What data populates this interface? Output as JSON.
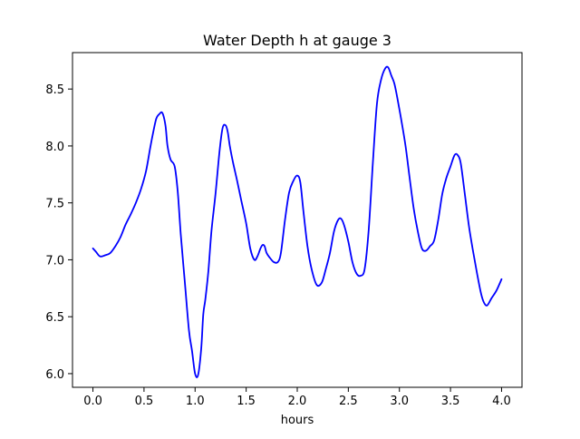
{
  "chart_data": {
    "type": "line",
    "title": "Water Depth h at gauge 3",
    "xlabel": "hours",
    "ylabel": "",
    "xlim": [
      -0.2,
      4.2
    ],
    "ylim": [
      5.88,
      8.82
    ],
    "xticks": [
      0.0,
      0.5,
      1.0,
      1.5,
      2.0,
      2.5,
      3.0,
      3.5,
      4.0
    ],
    "xtick_labels": [
      "0.0",
      "0.5",
      "1.0",
      "1.5",
      "2.0",
      "2.5",
      "3.0",
      "3.5",
      "4.0"
    ],
    "yticks": [
      6.0,
      6.5,
      7.0,
      7.5,
      8.0,
      8.5
    ],
    "ytick_labels": [
      "6.0",
      "6.5",
      "7.0",
      "7.5",
      "8.0",
      "8.5"
    ],
    "grid": false,
    "series": [
      {
        "color": "#0000ff",
        "x": [
          0.0,
          0.03,
          0.07,
          0.12,
          0.17,
          0.22,
          0.27,
          0.32,
          0.37,
          0.42,
          0.47,
          0.52,
          0.56,
          0.59,
          0.62,
          0.65,
          0.68,
          0.71,
          0.73,
          0.76,
          0.8,
          0.83,
          0.86,
          0.9,
          0.94,
          0.97,
          1.0,
          1.03,
          1.06,
          1.08,
          1.1,
          1.13,
          1.16,
          1.2,
          1.24,
          1.27,
          1.3,
          1.32,
          1.34,
          1.37,
          1.41,
          1.45,
          1.5,
          1.54,
          1.58,
          1.61,
          1.64,
          1.66,
          1.68,
          1.7,
          1.73,
          1.77,
          1.81,
          1.84,
          1.88,
          1.92,
          1.96,
          2.0,
          2.03,
          2.06,
          2.1,
          2.14,
          2.19,
          2.24,
          2.28,
          2.32,
          2.36,
          2.4,
          2.43,
          2.46,
          2.5,
          2.54,
          2.58,
          2.62,
          2.66,
          2.7,
          2.74,
          2.78,
          2.82,
          2.86,
          2.89,
          2.92,
          2.95,
          2.98,
          3.02,
          3.06,
          3.1,
          3.14,
          3.18,
          3.22,
          3.26,
          3.3,
          3.34,
          3.38,
          3.42,
          3.46,
          3.5,
          3.54,
          3.57,
          3.6,
          3.64,
          3.68,
          3.72,
          3.76,
          3.8,
          3.83,
          3.86,
          3.9,
          3.95,
          4.0
        ],
        "y": [
          7.1,
          7.07,
          7.03,
          7.04,
          7.06,
          7.12,
          7.2,
          7.31,
          7.4,
          7.5,
          7.62,
          7.78,
          7.98,
          8.12,
          8.24,
          8.28,
          8.29,
          8.18,
          8.0,
          7.88,
          7.82,
          7.6,
          7.22,
          6.8,
          6.38,
          6.2,
          6.0,
          5.99,
          6.22,
          6.52,
          6.65,
          6.9,
          7.25,
          7.58,
          7.96,
          8.16,
          8.18,
          8.12,
          8.0,
          7.86,
          7.7,
          7.53,
          7.32,
          7.1,
          7.0,
          7.03,
          7.1,
          7.13,
          7.12,
          7.06,
          7.02,
          6.98,
          6.98,
          7.06,
          7.35,
          7.59,
          7.69,
          7.74,
          7.68,
          7.43,
          7.12,
          6.92,
          6.78,
          6.8,
          6.92,
          7.06,
          7.25,
          7.35,
          7.36,
          7.3,
          7.16,
          6.98,
          6.88,
          6.86,
          6.92,
          7.27,
          7.85,
          8.37,
          8.58,
          8.68,
          8.69,
          8.62,
          8.55,
          8.42,
          8.22,
          8.0,
          7.72,
          7.45,
          7.25,
          7.1,
          7.08,
          7.12,
          7.17,
          7.35,
          7.58,
          7.72,
          7.82,
          7.92,
          7.92,
          7.85,
          7.58,
          7.3,
          7.08,
          6.88,
          6.7,
          6.62,
          6.6,
          6.66,
          6.73,
          6.83
        ]
      }
    ]
  }
}
